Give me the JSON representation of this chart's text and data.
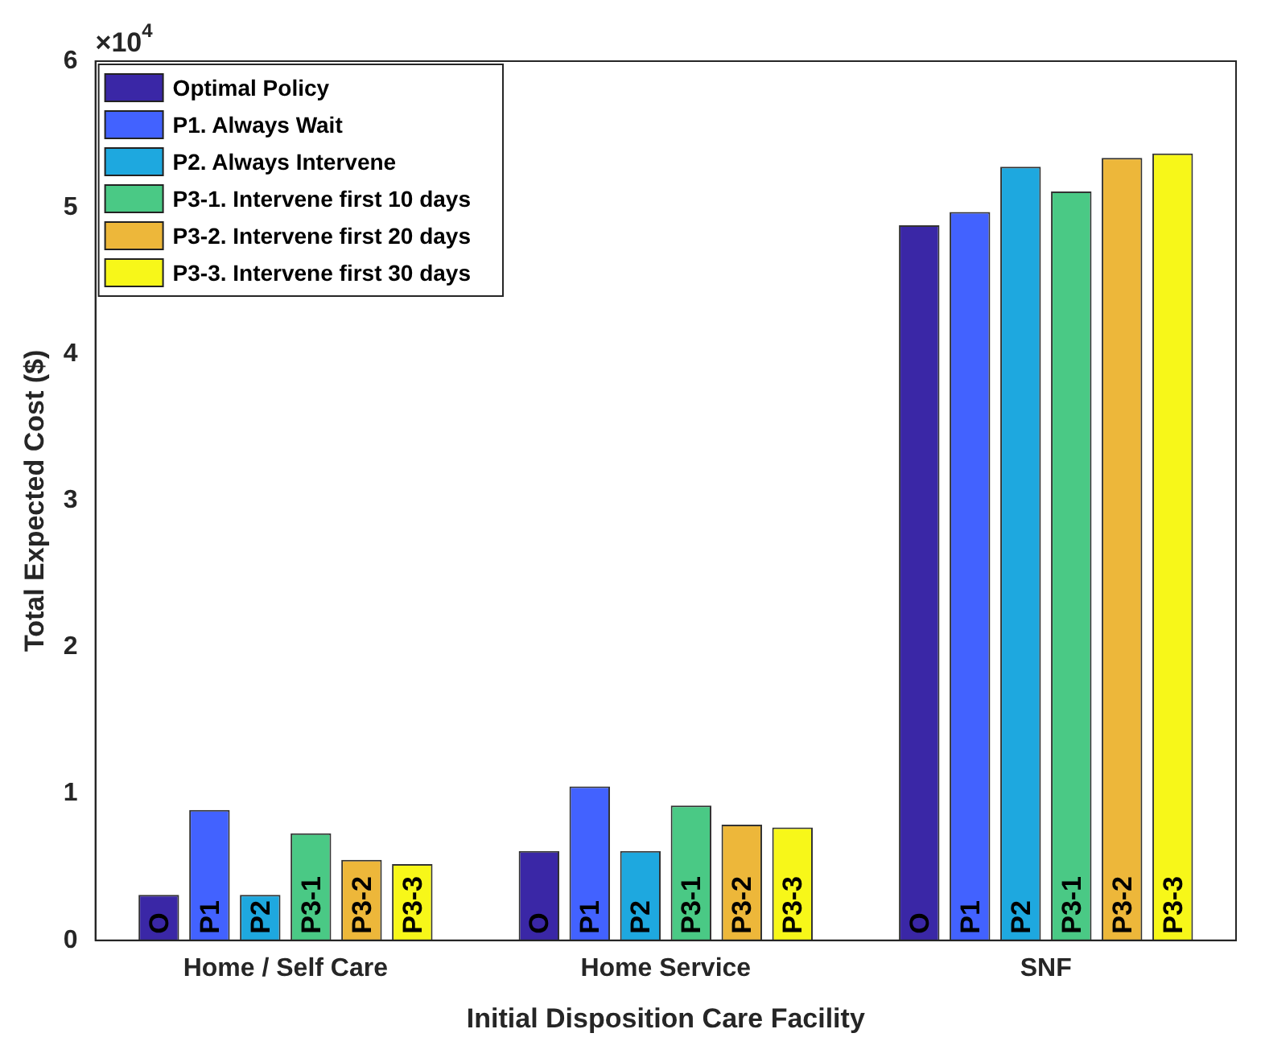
{
  "chart_data": {
    "type": "bar",
    "xlabel": "Initial Disposition Care Facility",
    "ylabel": "Total Expected Cost ($)",
    "categories": [
      "Home / Self Care",
      "Home Service",
      "SNF"
    ],
    "series": [
      {
        "name": "Optimal Policy",
        "color": "#3a27a6",
        "values": [
          0.31,
          0.61,
          4.88
        ]
      },
      {
        "name": "P1. Always Wait",
        "color": "#4262ff",
        "values": [
          0.89,
          1.05,
          4.97
        ]
      },
      {
        "name": "P2. Always Intervene",
        "color": "#1ea8df",
        "values": [
          0.31,
          0.61,
          5.28
        ]
      },
      {
        "name": "P3-1. Intervene first 10 days",
        "color": "#4ac985",
        "values": [
          0.73,
          0.92,
          5.11
        ]
      },
      {
        "name": "P3-2. Intervene first 20 days",
        "color": "#edb73a",
        "values": [
          0.55,
          0.79,
          5.34
        ]
      },
      {
        "name": "P3-3. Intervene first 30 days",
        "color": "#f7f719",
        "values": [
          0.52,
          0.77,
          5.37
        ]
      }
    ],
    "ylim": [
      0,
      6
    ],
    "yticks": [
      0,
      1,
      2,
      3,
      4,
      5,
      6
    ],
    "grid": false,
    "legend": "top left",
    "annotations": [
      "×10$^{4}$",
      "O",
      "P1",
      "P2",
      "P3-1",
      "P3-2",
      "P3-3",
      "O",
      "P1",
      "P2",
      "P3-1",
      "P3-2",
      "P3-3",
      "O",
      "P1",
      "P2",
      "P3-1",
      "P3-2",
      "P3-3"
    ]
  }
}
